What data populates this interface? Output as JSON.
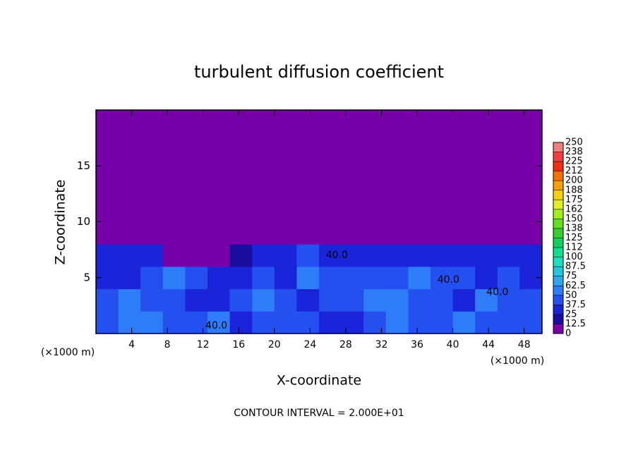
{
  "chart_data": {
    "type": "heatmap",
    "title": "turbulent diffusion coefficient",
    "x_label": "X-coordinate",
    "y_label": "Z-coordinate",
    "x_unit": "(×1000 m)",
    "y_unit": "(×1000 m)",
    "footnote": "CONTOUR INTERVAL = 2.000E+01",
    "xlim": [
      0,
      50
    ],
    "ylim": [
      0,
      20
    ],
    "xticks": [
      4,
      8,
      12,
      16,
      20,
      24,
      28,
      32,
      36,
      40,
      44,
      48
    ],
    "yticks": [
      5,
      10,
      15
    ],
    "x": [
      1.25,
      3.75,
      6.25,
      8.75,
      11.25,
      13.75,
      16.25,
      18.75,
      21.25,
      23.75,
      26.25,
      28.75,
      31.25,
      33.75,
      36.25,
      38.75,
      41.25,
      43.75,
      46.25,
      48.75
    ],
    "y": [
      1,
      3,
      5,
      7,
      9,
      11,
      13,
      15,
      17,
      19
    ],
    "z": [
      [
        45,
        55,
        50,
        40,
        45,
        50,
        35,
        40,
        40,
        45,
        35,
        30,
        40,
        60,
        45,
        40,
        50,
        45,
        40,
        45
      ],
      [
        40,
        50,
        45,
        45,
        35,
        30,
        40,
        50,
        45,
        35,
        40,
        45,
        55,
        60,
        40,
        45,
        35,
        50,
        45,
        40
      ],
      [
        35,
        30,
        45,
        60,
        40,
        35,
        30,
        40,
        35,
        50,
        45,
        40,
        45,
        40,
        55,
        40,
        45,
        35,
        40,
        35
      ],
      [
        30,
        30,
        25,
        0,
        0,
        0,
        20,
        25,
        30,
        40,
        35,
        30,
        35,
        30,
        30,
        30,
        35,
        30,
        30,
        30
      ],
      [
        0,
        0,
        0,
        0,
        0,
        0,
        0,
        0,
        0,
        0,
        0,
        0,
        0,
        0,
        0,
        0,
        0,
        0,
        0,
        0
      ],
      [
        0,
        0,
        0,
        0,
        0,
        0,
        0,
        0,
        0,
        0,
        0,
        0,
        0,
        0,
        0,
        0,
        0,
        0,
        0,
        0
      ],
      [
        0,
        0,
        0,
        0,
        0,
        0,
        0,
        0,
        0,
        0,
        0,
        0,
        0,
        0,
        0,
        0,
        0,
        0,
        0,
        0
      ],
      [
        0,
        0,
        0,
        0,
        0,
        0,
        0,
        0,
        0,
        0,
        0,
        0,
        0,
        0,
        0,
        0,
        0,
        0,
        0,
        0
      ],
      [
        0,
        0,
        0,
        0,
        0,
        0,
        0,
        0,
        0,
        0,
        0,
        0,
        0,
        0,
        0,
        0,
        0,
        0,
        0,
        0
      ],
      [
        0,
        0,
        0,
        0,
        0,
        0,
        0,
        0,
        0,
        0,
        0,
        0,
        0,
        0,
        0,
        0,
        0,
        0,
        0,
        0
      ]
    ],
    "contour_labels": [
      {
        "text": "40.0",
        "x": 27,
        "y": 7
      },
      {
        "text": "40.0",
        "x": 39.5,
        "y": 4.8
      },
      {
        "text": "40.0",
        "x": 45,
        "y": 3.7
      },
      {
        "text": "40.0",
        "x": 13.5,
        "y": 0.7
      }
    ],
    "colorbar": {
      "ticks": [
        0,
        12.5,
        25,
        37.5,
        50,
        62.5,
        75,
        87.5,
        100,
        {
          "value": 112.5,
          "label": "112"
        },
        125,
        {
          "value": 137.5,
          "label": "138"
        },
        150,
        {
          "value": 162.5,
          "label": "162"
        },
        175,
        {
          "value": 187.5,
          "label": "188"
        },
        200,
        {
          "value": 212.5,
          "label": "212"
        },
        225,
        {
          "value": 237.5,
          "label": "238"
        },
        250
      ],
      "colors": [
        "#7800a8",
        "#1a0ea0",
        "#1a24d8",
        "#2450f0",
        "#2e7cf8",
        "#30a8f0",
        "#20c8e0",
        "#18e0c0",
        "#10e090",
        "#10d060",
        "#30d030",
        "#60e020",
        "#a0f020",
        "#e0f020",
        "#f8d010",
        "#f8a000",
        "#f87000",
        "#f03010",
        "#f04040",
        "#f08080"
      ]
    }
  }
}
